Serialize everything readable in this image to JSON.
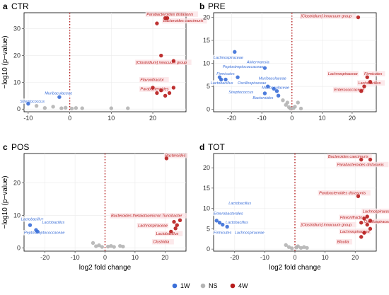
{
  "chart_data": [
    {
      "type": "scatter",
      "panel_label": "a",
      "title": "CTR",
      "xlim": [
        -11,
        28
      ],
      "ylim": [
        -1,
        36
      ],
      "xticks": [
        -10,
        0,
        10,
        20
      ],
      "yticks": [
        0,
        10,
        20,
        30
      ],
      "ylabel": "−log10 (p−value)",
      "xlabel": "",
      "series": [
        {
          "name": "1W",
          "color": "#3b6fd8",
          "points": [
            [
              -10,
              2
            ],
            [
              -2.5,
              4.5
            ]
          ]
        },
        {
          "name": "NS",
          "color": "#b4b4b4",
          "points": [
            [
              -8,
              1.2
            ],
            [
              -6,
              0.4
            ],
            [
              -4,
              0.9
            ],
            [
              -2,
              0.3
            ],
            [
              -1,
              0.5
            ],
            [
              0.5,
              0.2
            ],
            [
              1.5,
              0.4
            ],
            [
              3,
              0.3
            ],
            [
              10,
              0.3
            ],
            [
              14,
              0.3
            ]
          ]
        },
        {
          "name": "4W",
          "color": "#b71c1c",
          "points": [
            [
              21,
              32
            ],
            [
              23,
              34
            ],
            [
              23.5,
              34
            ],
            [
              22,
              20
            ],
            [
              25,
              18
            ],
            [
              20,
              8
            ],
            [
              21,
              6
            ],
            [
              22,
              7
            ],
            [
              23,
              5
            ],
            [
              24,
              6
            ],
            [
              25,
              8
            ]
          ]
        }
      ],
      "annotations": [
        {
          "text": "Parabacteroides distasonis",
          "color": "#b71c1c",
          "x": 18.5,
          "y": 35
        },
        {
          "text": "Bacteroides caecimuris",
          "color": "#b71c1c",
          "x": 22.5,
          "y": 32.5
        },
        {
          "text": "[Clostridium] innocuum group",
          "color": "#b71c1c",
          "x": 16,
          "y": 17
        },
        {
          "text": "Flavonifractor",
          "color": "#b71c1c",
          "x": 17,
          "y": 10.5
        },
        {
          "text": "Parabacteroides",
          "color": "#b71c1c",
          "x": 17,
          "y": 7
        },
        {
          "text": "Muribaculaceae",
          "color": "#3b6fd8",
          "x": -6,
          "y": 5.5
        },
        {
          "text": "Streptococcus",
          "color": "#3b6fd8",
          "x": -12,
          "y": 2.5
        }
      ]
    },
    {
      "type": "scatter",
      "panel_label": "b",
      "title": "PRE",
      "xlim": [
        -26,
        28
      ],
      "ylim": [
        -0.5,
        21
      ],
      "xticks": [
        -20,
        -10,
        0,
        10,
        20
      ],
      "yticks": [
        0,
        5,
        10,
        15,
        20
      ],
      "ylabel": "",
      "xlabel": "",
      "series": [
        {
          "name": "1W",
          "color": "#3b6fd8",
          "points": [
            [
              -19,
              12.5
            ],
            [
              -24,
              7
            ],
            [
              -23.5,
              6.5
            ],
            [
              -22,
              6.5
            ],
            [
              -18,
              7
            ],
            [
              -9,
              9
            ],
            [
              -8,
              5
            ],
            [
              -6,
              4.5
            ],
            [
              -5,
              4
            ],
            [
              -4.5,
              3
            ],
            [
              -9,
              3.5
            ]
          ]
        },
        {
          "name": "NS",
          "color": "#b4b4b4",
          "points": [
            [
              -2,
              1
            ],
            [
              -1,
              0.5
            ],
            [
              -3,
              2
            ],
            [
              0.5,
              0.3
            ],
            [
              1,
              0.6
            ],
            [
              2,
              1.5
            ],
            [
              -1.5,
              1.5
            ],
            [
              3,
              0.2
            ],
            [
              -0.5,
              0.2
            ]
          ]
        },
        {
          "name": "4W",
          "color": "#b71c1c",
          "points": [
            [
              22,
              20
            ],
            [
              25,
              7
            ],
            [
              26,
              6
            ],
            [
              24,
              5
            ],
            [
              23,
              4
            ]
          ]
        }
      ],
      "annotations": [
        {
          "text": "[Clostridium] innocuum group",
          "color": "#b71c1c",
          "x": 3,
          "y": 20
        },
        {
          "text": "Lachnospiraceae",
          "color": "#b71c1c",
          "x": 12,
          "y": 7.5
        },
        {
          "text": "Firmicutes",
          "color": "#b71c1c",
          "x": 24,
          "y": 7.5
        },
        {
          "text": "Lactobacillus",
          "color": "#b71c1c",
          "x": 22,
          "y": 5.5
        },
        {
          "text": "Enterococcaceae",
          "color": "#b71c1c",
          "x": 14,
          "y": 4
        },
        {
          "text": "Lachnospiraceae",
          "color": "#3b6fd8",
          "x": -26,
          "y": 11
        },
        {
          "text": "Peptostreptococcaceae",
          "color": "#3b6fd8",
          "x": -23,
          "y": 9
        },
        {
          "text": "Akkermansia",
          "color": "#3b6fd8",
          "x": -15,
          "y": 10
        },
        {
          "text": "Firmicutes",
          "color": "#3b6fd8",
          "x": -25,
          "y": 7.5
        },
        {
          "text": "Lactobacillus",
          "color": "#3b6fd8",
          "x": -27,
          "y": 5.5
        },
        {
          "text": "Oscillospiraceae",
          "color": "#3b6fd8",
          "x": -18,
          "y": 5.5
        },
        {
          "text": "Muribaculaceae",
          "color": "#3b6fd8",
          "x": -11,
          "y": 6.5
        },
        {
          "text": "Muribaculaceae",
          "color": "#3b6fd8",
          "x": -10,
          "y": 4.5
        },
        {
          "text": "Streptococcus",
          "color": "#3b6fd8",
          "x": -21,
          "y": 3.5
        },
        {
          "text": "Bacteroides",
          "color": "#3b6fd8",
          "x": -13,
          "y": 2.3
        }
      ]
    },
    {
      "type": "scatter",
      "panel_label": "c",
      "title": "POS",
      "xlim": [
        -27,
        27
      ],
      "ylim": [
        -1,
        29
      ],
      "xticks": [
        -20,
        -10,
        0,
        10,
        20
      ],
      "yticks": [
        0,
        10,
        20
      ],
      "ylabel": "−log10 (p−value)",
      "xlabel": "log2 fold change",
      "series": [
        {
          "name": "1W",
          "color": "#3b6fd8",
          "points": [
            [
              -25,
              7
            ],
            [
              -23,
              5.5
            ],
            [
              -22.5,
              5
            ]
          ]
        },
        {
          "name": "NS",
          "color": "#b4b4b4",
          "points": [
            [
              -4,
              1.5
            ],
            [
              -3,
              0.5
            ],
            [
              -2,
              0.8
            ],
            [
              -1,
              0.3
            ],
            [
              1,
              0.4
            ],
            [
              2,
              0.6
            ],
            [
              3,
              0.3
            ],
            [
              5,
              0.6
            ],
            [
              6,
              0.4
            ]
          ]
        },
        {
          "name": "4W",
          "color": "#b71c1c",
          "points": [
            [
              20.5,
              27.5
            ],
            [
              23,
              8
            ],
            [
              24,
              7
            ],
            [
              25,
              8.5
            ],
            [
              23.5,
              6
            ],
            [
              22,
              5
            ]
          ]
        }
      ],
      "annotations": [
        {
          "text": "Bacteroides",
          "color": "#b71c1c",
          "x": 20,
          "y": 28
        },
        {
          "text": "Bacteroides thetaiotaomicron",
          "color": "#b71c1c",
          "x": 2,
          "y": 9.5
        },
        {
          "text": "Turicibacter",
          "color": "#b71c1c",
          "x": 19,
          "y": 9.5
        },
        {
          "text": "Lachnospiraceae",
          "color": "#b71c1c",
          "x": 11,
          "y": 6.5
        },
        {
          "text": "Lactobacillus",
          "color": "#b71c1c",
          "x": 17,
          "y": 4
        },
        {
          "text": "Clostridia",
          "color": "#b71c1c",
          "x": 16,
          "y": 1.5
        },
        {
          "text": "Lactobacillus",
          "color": "#3b6fd8",
          "x": -28,
          "y": 8.5
        },
        {
          "text": "Lactobacillus",
          "color": "#3b6fd8",
          "x": -21,
          "y": 7.5
        },
        {
          "text": "Peptostreptococcaceae",
          "color": "#3b6fd8",
          "x": -27,
          "y": 4.3
        }
      ]
    },
    {
      "type": "scatter",
      "panel_label": "d",
      "title": "TOT",
      "xlim": [
        -27,
        27
      ],
      "ylim": [
        -0.5,
        23.5
      ],
      "xticks": [
        -20,
        -10,
        0,
        10,
        20
      ],
      "yticks": [
        0,
        5,
        10,
        15,
        20
      ],
      "ylabel": "",
      "xlabel": "log2 fold change",
      "series": [
        {
          "name": "1W",
          "color": "#3b6fd8",
          "points": [
            [
              -26,
              7
            ],
            [
              -25,
              6.5
            ],
            [
              -24,
              6
            ],
            [
              -22.5,
              5.5
            ]
          ]
        },
        {
          "name": "NS",
          "color": "#b4b4b4",
          "points": [
            [
              -2,
              0.5
            ],
            [
              -1,
              0.2
            ],
            [
              0.5,
              0.4
            ],
            [
              1,
              0.7
            ],
            [
              2,
              0.3
            ],
            [
              -3,
              1
            ],
            [
              3,
              0.5
            ],
            [
              4,
              0.3
            ]
          ]
        },
        {
          "name": "4W",
          "color": "#b71c1c",
          "points": [
            [
              22,
              22
            ],
            [
              25,
              22
            ],
            [
              21,
              13
            ],
            [
              24,
              8
            ],
            [
              23,
              7.5
            ],
            [
              25,
              7
            ],
            [
              22,
              6.5
            ],
            [
              24,
              6
            ],
            [
              25,
              5
            ],
            [
              23,
              4
            ],
            [
              22,
              3
            ]
          ]
        }
      ],
      "annotations": [
        {
          "text": "Bacteroides caecimuris",
          "color": "#b71c1c",
          "x": 11,
          "y": 22.5
        },
        {
          "text": "Parabacteroides distasonis",
          "color": "#b71c1c",
          "x": 14,
          "y": 20.5
        },
        {
          "text": "Parabacteroides distasonis",
          "color": "#b71c1c",
          "x": 8,
          "y": 13.5
        },
        {
          "text": "Lachnospiraceae",
          "color": "#b71c1c",
          "x": 22.5,
          "y": 9
        },
        {
          "text": "Flavonifractor",
          "color": "#b71c1c",
          "x": 15,
          "y": 7.5
        },
        {
          "text": "Oscillospiraceae",
          "color": "#b71c1c",
          "x": 23,
          "y": 6.5
        },
        {
          "text": "[Clostridium] innocuum group",
          "color": "#b71c1c",
          "x": 2,
          "y": 5.7
        },
        {
          "text": "Lachnospiraceae",
          "color": "#b71c1c",
          "x": 15,
          "y": 4
        },
        {
          "text": "Blautia",
          "color": "#b71c1c",
          "x": 14,
          "y": 1.5
        },
        {
          "text": "Lactobacillus",
          "color": "#3b6fd8",
          "x": -22,
          "y": 11
        },
        {
          "text": "Enterobacterales",
          "color": "#3b6fd8",
          "x": -27,
          "y": 8.5
        },
        {
          "text": "Lactobacillus",
          "color": "#3b6fd8",
          "x": -23,
          "y": 6.3
        },
        {
          "text": "Firmicutes",
          "color": "#3b6fd8",
          "x": -27,
          "y": 3.8
        },
        {
          "text": "Lachnospiraceae",
          "color": "#3b6fd8",
          "x": -20,
          "y": 3.8
        }
      ]
    }
  ],
  "legend": {
    "placement": "bottom",
    "items": [
      {
        "label": "1W",
        "color": "#3b6fd8"
      },
      {
        "label": "NS",
        "color": "#b4b4b4"
      },
      {
        "label": "4W",
        "color": "#b71c1c"
      }
    ]
  }
}
